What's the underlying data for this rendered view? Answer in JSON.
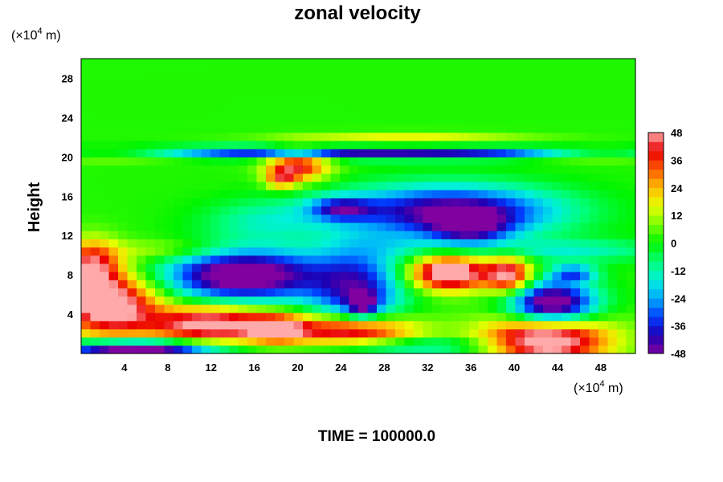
{
  "chart_data": {
    "type": "heatmap",
    "title": "zonal velocity",
    "ylabel": "Height",
    "y_unit_prefix": "(×10",
    "y_unit_exp": "4",
    "y_unit_suffix": " m)",
    "x_unit_prefix": "(×10",
    "x_unit_exp": "4",
    "x_unit_suffix": " m)",
    "xlim": [
      0,
      51.2
    ],
    "ylim": [
      0,
      30
    ],
    "xticks": [
      4,
      8,
      12,
      16,
      20,
      24,
      28,
      32,
      36,
      40,
      44,
      48
    ],
    "yticks": [
      4,
      8,
      12,
      16,
      20,
      24,
      28
    ],
    "colorbar": {
      "min": -48,
      "max": 48,
      "step": 4,
      "ticks": [
        48,
        36,
        24,
        12,
        0,
        -12,
        -24,
        -36,
        -48
      ]
    },
    "footer": "TIME = 100000.0",
    "field": {
      "x_cells": 60,
      "y_cells": 36,
      "background": 2,
      "features": [
        {
          "x": 26,
          "y": 20.5,
          "sx": 30,
          "sy": 0.45,
          "a": -44
        },
        {
          "x": 3,
          "y": 20.4,
          "sx": 6,
          "sy": 0.5,
          "a": 30
        },
        {
          "x": 48,
          "y": 20.4,
          "sx": 5,
          "sy": 0.5,
          "a": 28
        },
        {
          "x": 30,
          "y": 21.8,
          "sx": 8,
          "sy": 0.45,
          "a": 18
        },
        {
          "x": 20,
          "y": 19.2,
          "sx": 2,
          "sy": 1.1,
          "a": 40
        },
        {
          "x": 18.5,
          "y": 17.8,
          "sx": 1,
          "sy": 0.7,
          "a": 28
        },
        {
          "x": 34,
          "y": 14.5,
          "sx": 7,
          "sy": 1.8,
          "a": -50
        },
        {
          "x": 36,
          "y": 12.8,
          "sx": 2.5,
          "sy": 1.2,
          "a": -30
        },
        {
          "x": 24,
          "y": 14.8,
          "sx": 2,
          "sy": 0.8,
          "a": -30
        },
        {
          "x": 17,
          "y": 13.5,
          "sx": 4,
          "sy": 1.5,
          "a": -14
        },
        {
          "x": 45,
          "y": 10.5,
          "sx": 6,
          "sy": 0.8,
          "a": -16
        },
        {
          "x": 15,
          "y": 8,
          "sx": 5,
          "sy": 1.8,
          "a": -62
        },
        {
          "x": 25.5,
          "y": 6.5,
          "sx": 3,
          "sy": 3,
          "a": -40
        },
        {
          "x": 26,
          "y": 5,
          "sx": 0.9,
          "sy": 0.9,
          "a": -30
        },
        {
          "x": 2.5,
          "y": 5,
          "sx": 3.2,
          "sy": 2.2,
          "a": 56
        },
        {
          "x": 1,
          "y": 9,
          "sx": 1.8,
          "sy": 1.8,
          "a": 40
        },
        {
          "x": 12,
          "y": 3,
          "sx": 4,
          "sy": 1.3,
          "a": 52
        },
        {
          "x": 18,
          "y": 2.5,
          "sx": 2,
          "sy": 1,
          "a": 36
        },
        {
          "x": 25,
          "y": 2.3,
          "sx": 4,
          "sy": 1.2,
          "a": 54
        },
        {
          "x": 34,
          "y": 8.2,
          "sx": 2.5,
          "sy": 1.2,
          "a": 60
        },
        {
          "x": 39.5,
          "y": 8,
          "sx": 1.5,
          "sy": 1.3,
          "a": 46
        },
        {
          "x": 43,
          "y": 1.5,
          "sx": 4,
          "sy": 1.8,
          "a": 60
        },
        {
          "x": 43.5,
          "y": 5,
          "sx": 2.8,
          "sy": 1.6,
          "a": -64
        },
        {
          "x": 45.5,
          "y": 8.2,
          "sx": 1.5,
          "sy": 0.6,
          "a": -30
        },
        {
          "x": 5,
          "y": 0.5,
          "sx": 5,
          "sy": 0.6,
          "a": -62
        },
        {
          "x": 30,
          "y": 0.8,
          "sx": 7,
          "sy": 0.6,
          "a": -20
        },
        {
          "x": 8,
          "y": 10.5,
          "sx": 4,
          "sy": 0.8,
          "a": 12
        },
        {
          "x": 29,
          "y": 11,
          "sx": 4,
          "sy": 1,
          "a": -8
        }
      ]
    }
  }
}
